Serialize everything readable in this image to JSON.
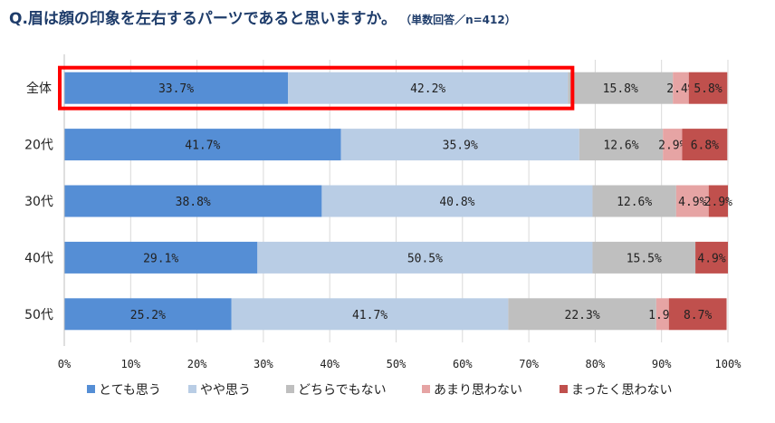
{
  "title": "Q.眉は顔の印象を左右するパーツであると思いますか。",
  "subtitle": "（単数回答／n=412）",
  "chart_data": {
    "type": "bar",
    "orientation": "horizontal",
    "stacked": true,
    "percent": true,
    "categories": [
      "全体",
      "20代",
      "30代",
      "40代",
      "50代"
    ],
    "series": [
      {
        "name": "とても思う",
        "color": "#558ed5",
        "values": [
          33.7,
          41.7,
          38.8,
          29.1,
          25.2
        ]
      },
      {
        "name": "やや思う",
        "color": "#b9cde5",
        "values": [
          42.2,
          35.9,
          40.8,
          50.5,
          41.7
        ]
      },
      {
        "name": "どちらでもない",
        "color": "#bfbfbf",
        "values": [
          15.8,
          12.6,
          12.6,
          15.5,
          22.3
        ]
      },
      {
        "name": "あまり思わない",
        "color": "#e6a4a4",
        "values": [
          2.4,
          2.9,
          4.9,
          0,
          1.9
        ]
      },
      {
        "name": "まったく思わない",
        "color": "#c0504d",
        "values": [
          5.8,
          6.8,
          2.9,
          4.9,
          8.7
        ]
      }
    ],
    "value_labels": [
      [
        "33.7%",
        "42.2%",
        "15.8%",
        "2.4%",
        "5.8%"
      ],
      [
        "41.7%",
        "35.9%",
        "12.6%",
        "2.9%",
        "6.8%"
      ],
      [
        "38.8%",
        "40.8%",
        "12.6%",
        "4.9%",
        "2.9%"
      ],
      [
        "29.1%",
        "50.5%",
        "15.5%",
        "",
        "4.9%"
      ],
      [
        "25.2%",
        "41.7%",
        "22.3%",
        "1.9%",
        "8.7%"
      ]
    ],
    "xticks": [
      "0%",
      "10%",
      "20%",
      "30%",
      "40%",
      "50%",
      "60%",
      "70%",
      "80%",
      "90%",
      "100%"
    ],
    "xlim": [
      0,
      100
    ],
    "legend_position": "bottom",
    "highlight": {
      "category": "全体",
      "series": [
        "とても思う",
        "やや思う"
      ],
      "color": "#ff0000"
    }
  }
}
